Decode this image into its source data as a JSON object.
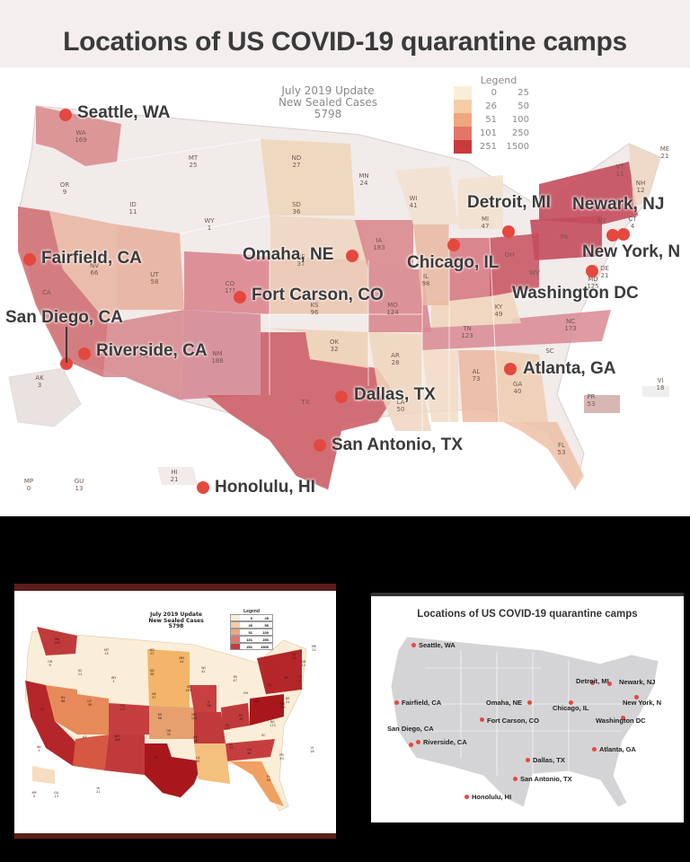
{
  "top": {
    "title": "Locations of US COVID-19 quarantine camps",
    "update_title": "July 2019 Update",
    "update_sub": "New Sealed Cases",
    "update_total": "5798",
    "legend": {
      "title": "Legend",
      "rows": [
        {
          "low": "0",
          "high": "25",
          "color": "#fbeed8"
        },
        {
          "low": "26",
          "high": "50",
          "color": "#f5cda7"
        },
        {
          "low": "51",
          "high": "100",
          "color": "#eea77f"
        },
        {
          "low": "101",
          "high": "250",
          "color": "#e37668"
        },
        {
          "low": "251",
          "high": "1500",
          "color": "#c93a3c"
        }
      ]
    },
    "locations": [
      "Seattle, WA",
      "Detroit, MI",
      "Newark, NJ",
      "Fairfield, CA",
      "Omaha, NE",
      "Chicago, IL",
      "New York, N",
      "Fort Carson, CO",
      "Washington DC",
      "San Diego, CA",
      "Riverside, CA",
      "Atlanta, GA",
      "Dallas, TX",
      "San Antonio, TX",
      "Honolulu, HI"
    ],
    "states": [
      {
        "abbr": "WA",
        "n": "169"
      },
      {
        "abbr": "OR",
        "n": "9"
      },
      {
        "abbr": "CA",
        "n": ""
      },
      {
        "abbr": "ID",
        "n": "11"
      },
      {
        "abbr": "MT",
        "n": "25"
      },
      {
        "abbr": "WY",
        "n": "1"
      },
      {
        "abbr": "ND",
        "n": "27"
      },
      {
        "abbr": "SD",
        "n": "36"
      },
      {
        "abbr": "MN",
        "n": "24"
      },
      {
        "abbr": "WI",
        "n": "41"
      },
      {
        "abbr": "MI",
        "n": "47"
      },
      {
        "abbr": "IA",
        "n": "183"
      },
      {
        "abbr": "NE",
        "n": "37"
      },
      {
        "abbr": "UT",
        "n": "58"
      },
      {
        "abbr": "NV",
        "n": "66"
      },
      {
        "abbr": "CO",
        "n": "1??"
      },
      {
        "abbr": "KS",
        "n": "96"
      },
      {
        "abbr": "MO",
        "n": "124"
      },
      {
        "abbr": "OK",
        "n": "32"
      },
      {
        "abbr": "AR",
        "n": "28"
      },
      {
        "abbr": "TX",
        "n": ""
      },
      {
        "abbr": "NM",
        "n": "188"
      },
      {
        "abbr": "AZ",
        "n": ""
      },
      {
        "abbr": "LA",
        "n": "50"
      },
      {
        "abbr": "AL",
        "n": "73"
      },
      {
        "abbr": "GA",
        "n": "40"
      },
      {
        "abbr": "FL",
        "n": "53"
      },
      {
        "abbr": "TN",
        "n": "123"
      },
      {
        "abbr": "KY",
        "n": "49"
      },
      {
        "abbr": "IL",
        "n": "98"
      },
      {
        "abbr": "OH",
        "n": ""
      },
      {
        "abbr": "PA",
        "n": ""
      },
      {
        "abbr": "NY",
        "n": ""
      },
      {
        "abbr": "NC",
        "n": "173"
      },
      {
        "abbr": "SC",
        "n": ""
      },
      {
        "abbr": "WV",
        "n": ""
      },
      {
        "abbr": "AK",
        "n": "3"
      },
      {
        "abbr": "HI",
        "n": "21"
      },
      {
        "abbr": "PR",
        "n": "53"
      },
      {
        "abbr": "VI",
        "n": "18"
      },
      {
        "abbr": "MP",
        "n": "0"
      },
      {
        "abbr": "GU",
        "n": "13"
      },
      {
        "abbr": "ME",
        "n": "21"
      },
      {
        "abbr": "VT",
        "n": "11"
      },
      {
        "abbr": "NH",
        "n": "12"
      },
      {
        "abbr": "CT",
        "n": "4"
      },
      {
        "abbr": "DE",
        "n": "21"
      },
      {
        "abbr": "MD",
        "n": "125"
      }
    ]
  },
  "bottom_left": {
    "update_title": "July 2019 Update",
    "update_sub": "New Sealed Cases",
    "update_total": "5798",
    "legend_title": "Legend"
  },
  "bottom_right": {
    "title": "Locations of US COVID-19 quarantine camps"
  }
}
